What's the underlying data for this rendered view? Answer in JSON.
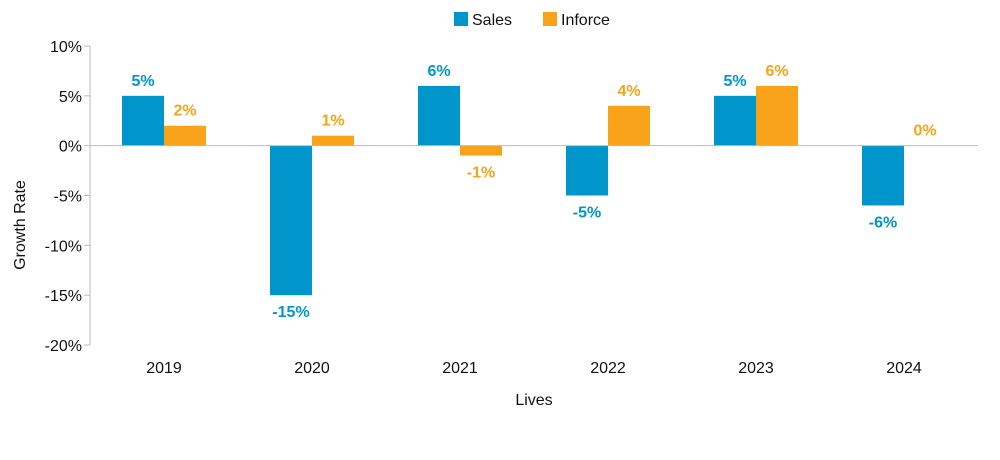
{
  "chart_data": {
    "type": "bar",
    "title": "",
    "xlabel": "Lives",
    "ylabel": "Growth Rate",
    "categories": [
      "2019",
      "2020",
      "2021",
      "2022",
      "2023",
      "2024"
    ],
    "series": [
      {
        "name": "Sales",
        "color": "#0096CC",
        "values": [
          5,
          -15,
          6,
          -5,
          5,
          -6
        ]
      },
      {
        "name": "Inforce",
        "color": "#F9A31B",
        "values": [
          2,
          1,
          -1,
          4,
          6,
          0
        ]
      }
    ],
    "value_labels": {
      "Sales": [
        "5%",
        "-15%",
        "6%",
        "-5%",
        "5%",
        "-6%"
      ],
      "Inforce": [
        "2%",
        "1%",
        "-1%",
        "4%",
        "6%",
        "0%"
      ]
    },
    "ylim": [
      -20,
      10
    ],
    "yticks": [
      10,
      5,
      0,
      -5,
      -10,
      -15,
      -20
    ],
    "ytick_labels": [
      "10%",
      "5%",
      "0%",
      "-5%",
      "-10%",
      "-15%",
      "-20%"
    ],
    "grid": false,
    "legend_position": "top-center"
  }
}
